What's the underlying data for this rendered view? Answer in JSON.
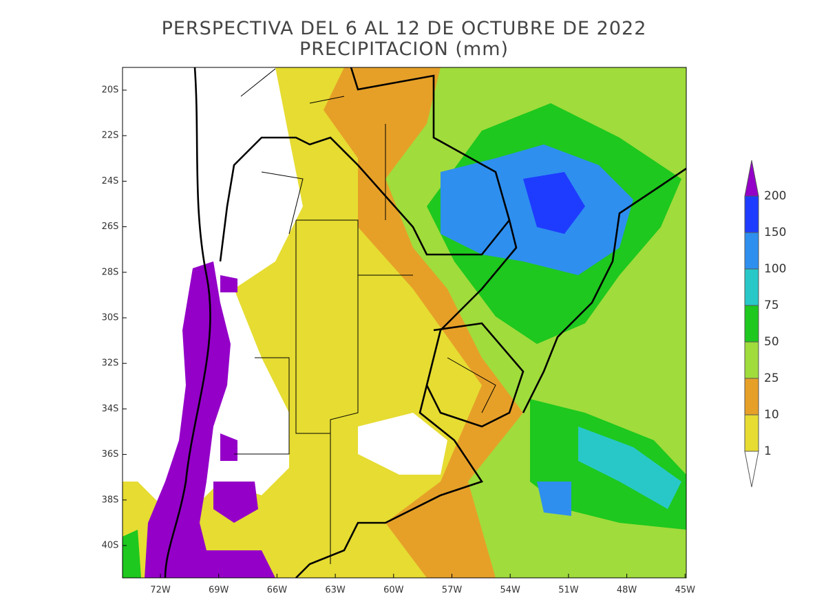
{
  "header": {
    "title": "PERSPECTIVA DEL 6 AL 12 DE OCTUBRE DE 2022",
    "subtitle": "PRECIPITACION (mm)"
  },
  "map": {
    "lat_labels": [
      "20S",
      "22S",
      "24S",
      "26S",
      "28S",
      "30S",
      "32S",
      "34S",
      "36S",
      "38S",
      "40S"
    ],
    "lon_labels": [
      "72W",
      "69W",
      "66W",
      "63W",
      "60W",
      "57W",
      "54W",
      "51W",
      "48W",
      "45W"
    ]
  },
  "colorbar": {
    "levels": [
      1,
      10,
      25,
      50,
      75,
      100,
      150,
      200
    ],
    "colors": [
      "#ffffff",
      "#e6dc32",
      "#e6a028",
      "#a0dc3c",
      "#1ec81e",
      "#28c8c8",
      "#2e8fef",
      "#1e3cff",
      "#9400c8"
    ]
  }
}
